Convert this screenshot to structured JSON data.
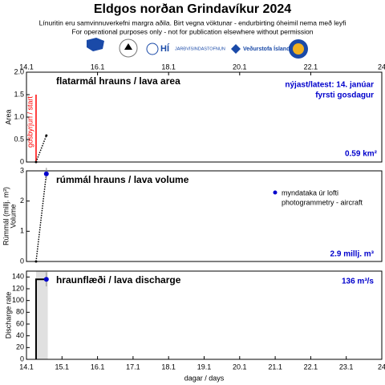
{
  "header": {
    "title": "Eldgos norðan Grindavíkur 2024",
    "subtitle": [
      "Línuritin eru samvinnuverkefni margra aðila.  Birt vegna vöktunar - endurbirting óheimil nema með leyfi",
      "For operational purposes only - not for publication elsewhere without permission"
    ],
    "logos": [
      "HÍ",
      "JARÐVÍSINDASTOFNUN",
      "Veðurstofa Íslands"
    ]
  },
  "chart_data": [
    {
      "type": "line",
      "title": "flatarmál hrauns / lava area",
      "ylabel": "Area",
      "xlim": [
        14,
        24
      ],
      "ylim": [
        0,
        2
      ],
      "yticks": [
        0,
        0.5,
        {
          "value": 1,
          "label": "1.0"
        },
        1.5,
        {
          "value": 2,
          "label": "2.0"
        }
      ],
      "x2ticks": [
        {
          "value": 14,
          "label": "14.1"
        },
        {
          "value": 16,
          "label": "16.1"
        },
        {
          "value": 18,
          "label": "18.1"
        },
        {
          "value": 20,
          "label": "20.1"
        },
        {
          "value": 22,
          "label": "22.1"
        },
        24
      ],
      "start": {
        "x": 14.27,
        "label": "gosbyrjun / start",
        "color": "#ff0000"
      },
      "series": [
        {
          "color": "#000000",
          "x": [
            14.27,
            14.56
          ],
          "values": [
            0,
            0.59
          ]
        }
      ],
      "annotations": [
        "nýjast/latest: 14. janúar",
        "fyrsti gosdagur",
        "0.59 km²"
      ]
    },
    {
      "type": "line",
      "title": "rúmmál hrauns / lava volume",
      "ylabel": "Rúmmál (millj. m³)",
      "ylabel2": "Volume",
      "xlim": [
        14,
        24
      ],
      "ylim": [
        0,
        3
      ],
      "yticks": [
        0,
        1,
        2,
        3
      ],
      "series": [
        {
          "color": "#000000",
          "x": [
            14.27,
            14.56
          ],
          "values": [
            0,
            2.9
          ]
        }
      ],
      "points": {
        "name": "myndataka úr lofti",
        "color": "#0000cc",
        "x": [
          14.56
        ],
        "values": [
          2.9
        ],
        "errors": [
          0.2
        ]
      },
      "annotations": [
        "photogrammetry - aircraft",
        "2.9 millj. m³"
      ]
    },
    {
      "type": "line",
      "title": "hraunflæði / lava discharge",
      "ylabel": "Discharge rate",
      "xlabel": "dagar / days",
      "xlim": [
        14,
        24
      ],
      "ylim": [
        0,
        150
      ],
      "yticks": [
        0,
        20,
        40,
        60,
        80,
        100,
        120,
        140
      ],
      "xticks": [
        {
          "value": 14,
          "label": "14.1"
        },
        {
          "value": 15,
          "label": "15.1"
        },
        {
          "value": 16,
          "label": "16.1"
        },
        {
          "value": 17,
          "label": "17.1"
        },
        {
          "value": 18,
          "label": "18.1"
        },
        {
          "value": 19,
          "label": "19.1"
        },
        {
          "value": 20,
          "label": "20.1"
        },
        {
          "value": 21,
          "label": "21.1"
        },
        {
          "value": 22,
          "label": "22.1"
        },
        {
          "value": 23,
          "label": "23.1"
        },
        24
      ],
      "band_x": [
        14.27,
        14.6
      ],
      "series": [
        {
          "color": "#000000",
          "x": [
            14.27,
            14.27,
            14.56
          ],
          "values": [
            0,
            136,
            136
          ]
        }
      ],
      "points": {
        "color": "#0000cc",
        "x": [
          14.56
        ],
        "values": [
          136
        ],
        "errors": [
          12
        ]
      },
      "annotations": [
        "136 m³/s"
      ]
    }
  ]
}
